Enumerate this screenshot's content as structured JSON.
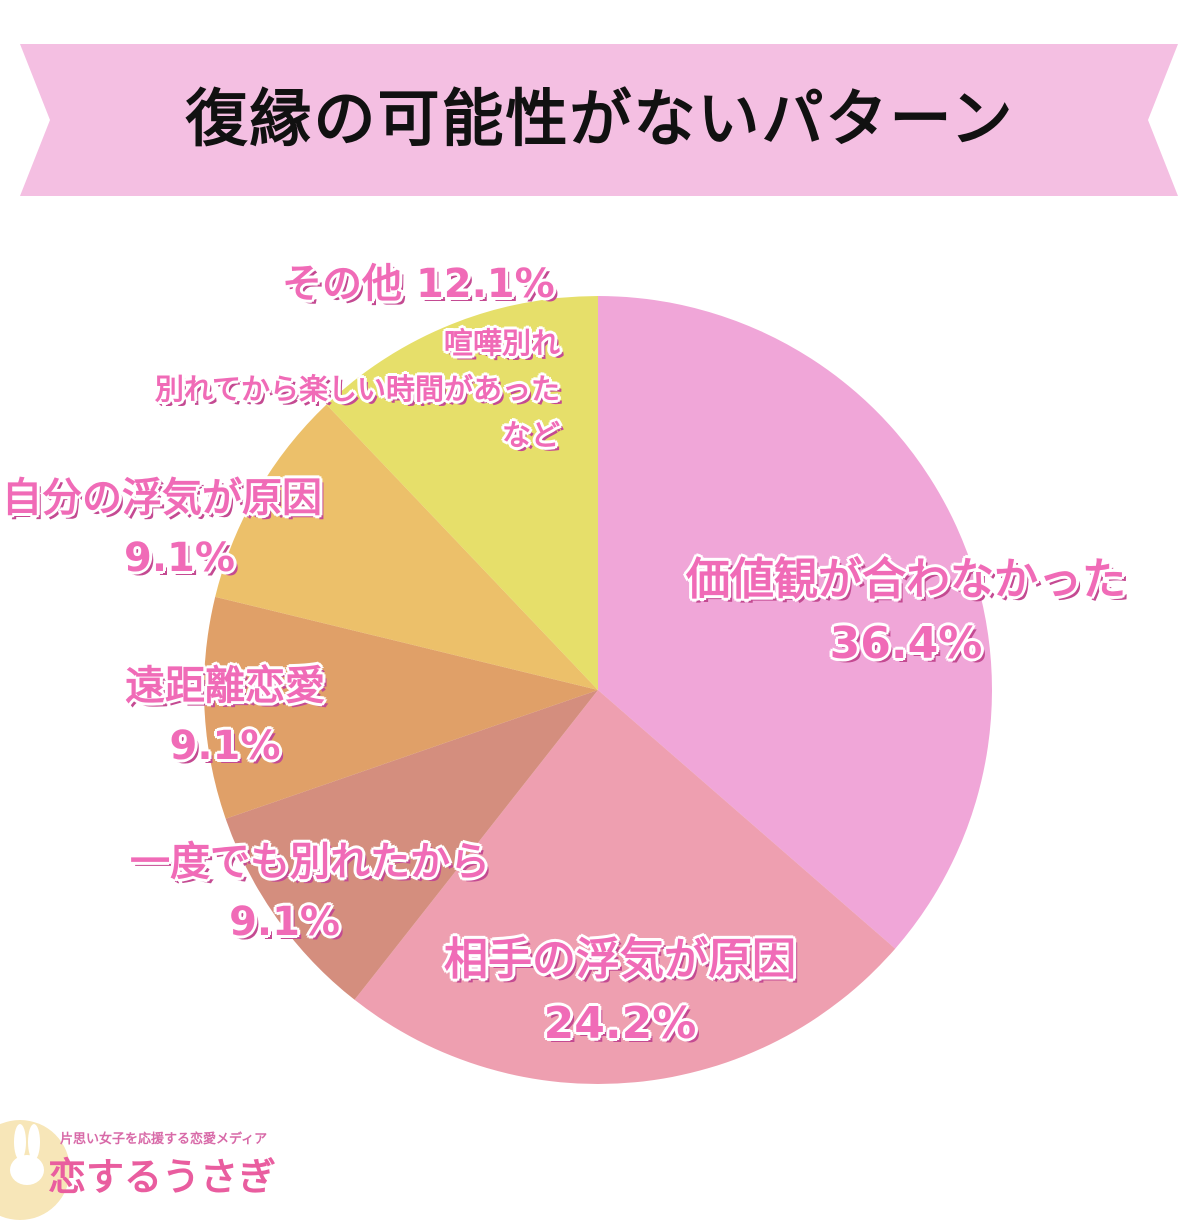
{
  "title": "復縁の可能性がないパターン",
  "colors": {
    "banner": "#f4bfe2",
    "label": "#f06bb7",
    "label_shadow": "#c44a92"
  },
  "chart_data": {
    "type": "pie",
    "title": "復縁の可能性がないパターン",
    "start": "12 o'clock",
    "direction": "clockwise",
    "slices": [
      {
        "name": "価値観が合わなかった",
        "value": 36.4,
        "label_value": "36.4%",
        "color": "#f0a6d8"
      },
      {
        "name": "相手の浮気が原因",
        "value": 24.2,
        "label_value": "24.2%",
        "color": "#ee9fb0"
      },
      {
        "name": "一度でも別れたから",
        "value": 9.1,
        "label_value": "9.1%",
        "color": "#d48e7e"
      },
      {
        "name": "遠距離恋愛",
        "value": 9.1,
        "label_value": "9.1%",
        "color": "#e0a068"
      },
      {
        "name": "自分の浮気が原因",
        "value": 9.1,
        "label_value": "9.1%",
        "color": "#ecc06a"
      },
      {
        "name": "その他",
        "value": 12.1,
        "label_value": "12.1%",
        "color": "#e6df6a",
        "note_lines": [
          "喧嘩別れ",
          "別れてから楽しい時間があった",
          "など"
        ]
      }
    ]
  },
  "brand": {
    "tagline": "片思い女子を応援する恋愛メディア",
    "name": "恋するうさぎ"
  }
}
